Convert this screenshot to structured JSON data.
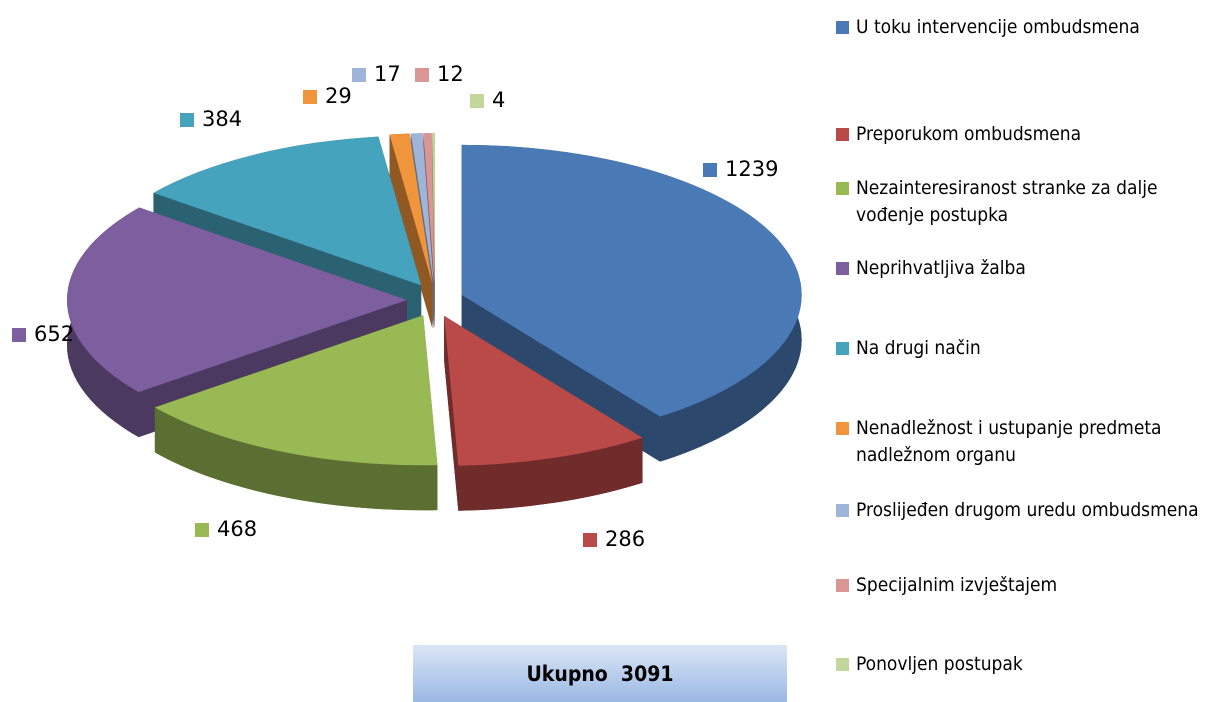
{
  "chart_data": {
    "type": "pie",
    "categories": [
      "U toku intervencije ombudsmena",
      "Preporukom ombudsmena",
      "Nezainteresiranost stranke za dalje vođenje postupka",
      "Neprihvatljiva žalba",
      "Na drugi način",
      "Nenadležnost i ustupanje predmeta nadležnom organu",
      "Proslijeđen drugom uredu ombudsmena",
      "Specijalnim izvještajem",
      "Ponovljen postupak"
    ],
    "values": [
      1239,
      286,
      468,
      652,
      384,
      29,
      17,
      12,
      4
    ],
    "colors": [
      "#4a7ab5",
      "#b94a48",
      "#98b954",
      "#7d5fa0",
      "#46a3bd",
      "#f0953b",
      "#9fb4d9",
      "#d99694",
      "#c3d69b"
    ],
    "annotation": "Ukupno  3091"
  }
}
